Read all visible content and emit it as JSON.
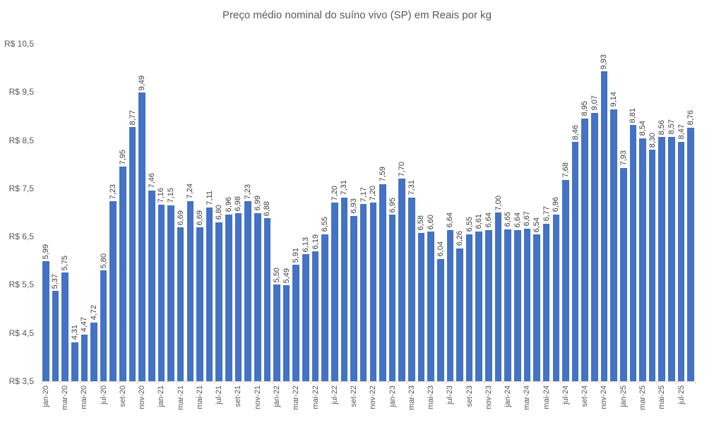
{
  "chart_data": {
    "type": "bar",
    "title": "Preço médio nominal do suíno vivo (SP) em Reais por kg",
    "categories": [
      "jan-20",
      "fev-20",
      "mar-20",
      "abr-20",
      "mai-20",
      "jun-20",
      "jul-20",
      "ago-20",
      "set-20",
      "out-20",
      "nov-20",
      "dez-20",
      "jan-21",
      "fev-21",
      "mar-21",
      "abr-21",
      "mai-21",
      "jun-21",
      "jul-21",
      "ago-21",
      "set-21",
      "out-21",
      "nov-21",
      "dez-21",
      "jan-22",
      "fev-22",
      "mar-22",
      "abr-22",
      "mai-22",
      "jun-22",
      "jul-22",
      "ago-22",
      "set-22",
      "out-22",
      "nov-22",
      "dez-22",
      "jan-23",
      "fev-23",
      "mar-23",
      "abr-23",
      "mai-23",
      "jun-23",
      "jul-23",
      "ago-23",
      "set-23",
      "out-23",
      "nov-23",
      "dez-23",
      "jan-24",
      "fev-24",
      "mar-24",
      "abr-24",
      "mai-24",
      "jun-24",
      "jul-24",
      "ago-24",
      "set-24",
      "out-24",
      "nov-24",
      "dez-24",
      "jan-25",
      "fev-25",
      "mar-25",
      "abr-25",
      "mai-25",
      "jun-25",
      "jul-25",
      "ago-25"
    ],
    "values": [
      5.99,
      5.37,
      5.75,
      4.31,
      4.47,
      4.72,
      5.8,
      7.23,
      7.95,
      8.77,
      9.49,
      7.46,
      7.16,
      7.15,
      6.69,
      7.24,
      6.69,
      7.11,
      6.8,
      6.96,
      6.98,
      7.23,
      6.99,
      6.88,
      5.5,
      5.49,
      5.91,
      6.13,
      6.19,
      6.55,
      7.2,
      7.31,
      6.93,
      7.17,
      7.2,
      7.59,
      6.95,
      7.7,
      7.31,
      6.58,
      6.6,
      6.04,
      6.64,
      6.26,
      6.55,
      6.61,
      6.64,
      7.0,
      6.65,
      6.64,
      6.67,
      6.54,
      6.77,
      6.96,
      7.68,
      8.46,
      8.95,
      9.07,
      9.93,
      9.14,
      7.93,
      8.81,
      8.54,
      8.3,
      8.56,
      8.57,
      8.47,
      8.76
    ],
    "value_labels": [
      "5,99",
      "5,37",
      "5,75",
      "4,31",
      "4,47",
      "4,72",
      "5,80",
      "7,23",
      "7,95",
      "8,77",
      "9,49",
      "7,46",
      "7,16",
      "7,15",
      "6,69",
      "7,24",
      "6,69",
      "7,11",
      "6,80",
      "6,96",
      "6,98",
      "7,23",
      "6,99",
      "6,88",
      "5,50",
      "5,49",
      "5,91",
      "6,13",
      "6,19",
      "6,55",
      "7,20",
      "7,31",
      "6,93",
      "7,17",
      "7,20",
      "7,59",
      "6,95",
      "7,70",
      "7,31",
      "6,58",
      "6,60",
      "6,04",
      "6,64",
      "6,26",
      "6,55",
      "6,61",
      "6,64",
      "7,00",
      "6,65",
      "6,64",
      "6,67",
      "6,54",
      "6,77",
      "6,96",
      "7,68",
      "8,46",
      "8,95",
      "9,07",
      "9,93",
      "9,14",
      "7,93",
      "8,81",
      "8,54",
      "8,30",
      "8,56",
      "8,57",
      "8,47",
      "8,76"
    ],
    "x_tick_labels": [
      "jan-20",
      "mar-20",
      "mai-20",
      "jul-20",
      "set-20",
      "nov-20",
      "jan-21",
      "mar-21",
      "mai-21",
      "jul-21",
      "set-21",
      "nov-21",
      "jan-22",
      "mar-22",
      "mai-22",
      "jul-22",
      "set-22",
      "nov-22",
      "jan-23",
      "mar-23",
      "mai-23",
      "jul-23",
      "set-23",
      "nov-23",
      "jan-24",
      "mar-24",
      "mai-24",
      "jul-24",
      "set-24",
      "nov-24",
      "jan-25",
      "mar-25",
      "mai-25",
      "jul-25"
    ],
    "x_label_every": 2,
    "y_ticks": [
      {
        "label": "R$ 10,5",
        "value": 10.5
      },
      {
        "label": "R$ 9,5",
        "value": 9.5
      },
      {
        "label": "R$ 8,5",
        "value": 8.5
      },
      {
        "label": "R$ 7,5",
        "value": 7.5
      },
      {
        "label": "R$ 6,5",
        "value": 6.5
      },
      {
        "label": "R$ 5,5",
        "value": 5.5
      },
      {
        "label": "R$ 4,5",
        "value": 4.5
      },
      {
        "label": "R$ 3,5",
        "value": 3.5
      }
    ],
    "ylim": [
      3.5,
      10.5
    ],
    "grid": "off",
    "legend": "none",
    "bar_color": "#4472C4",
    "value_label_color": "#404040",
    "axis_label_color": "#595959",
    "title_color": "#595959",
    "axis_line_color": "#D9D9D9"
  }
}
